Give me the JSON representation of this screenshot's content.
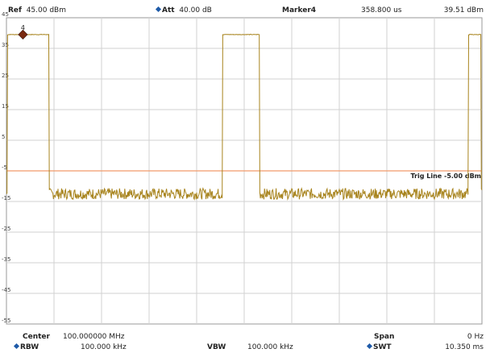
{
  "header": {
    "ref_label": "Ref",
    "ref_value": "45.00 dBm",
    "att_label": "Att",
    "att_value": "40.00 dB",
    "marker_label": "Marker4",
    "marker_time": "358.800 us",
    "marker_level": "39.51 dBm"
  },
  "footer": {
    "center_label": "Center",
    "center_value": "100.000000 MHz",
    "span_label": "Span",
    "span_value": "0 Hz",
    "rbw_label": "RBW",
    "rbw_value": "100.000 kHz",
    "vbw_label": "VBW",
    "vbw_value": "100.000 kHz",
    "swt_label": "SWT",
    "swt_value": "10.350 ms"
  },
  "chart_data": {
    "type": "line",
    "xlabel": "",
    "ylabel": "",
    "ylim": [
      -55,
      45
    ],
    "y_ticks": [
      "45",
      "35",
      "25",
      "15",
      "5",
      "-5",
      "-15",
      "-25",
      "-35",
      "-45",
      "-55"
    ],
    "x_divisions": 10,
    "grid": true,
    "trace_color": "#a8841e",
    "trig_line": {
      "level": -5,
      "label": "Trig Line -5.00 dBm",
      "color": "#f29a6b"
    },
    "marker": {
      "number": "4",
      "x_ms": 0.3588,
      "level": 39.51
    },
    "pulses_ms": [
      [
        0.0,
        0.948
      ],
      [
        4.681,
        5.527
      ],
      [
        10.035,
        10.35
      ]
    ],
    "pulse_level": 39.51,
    "noise_floor": -12.5,
    "noise_spread": 1.8
  }
}
